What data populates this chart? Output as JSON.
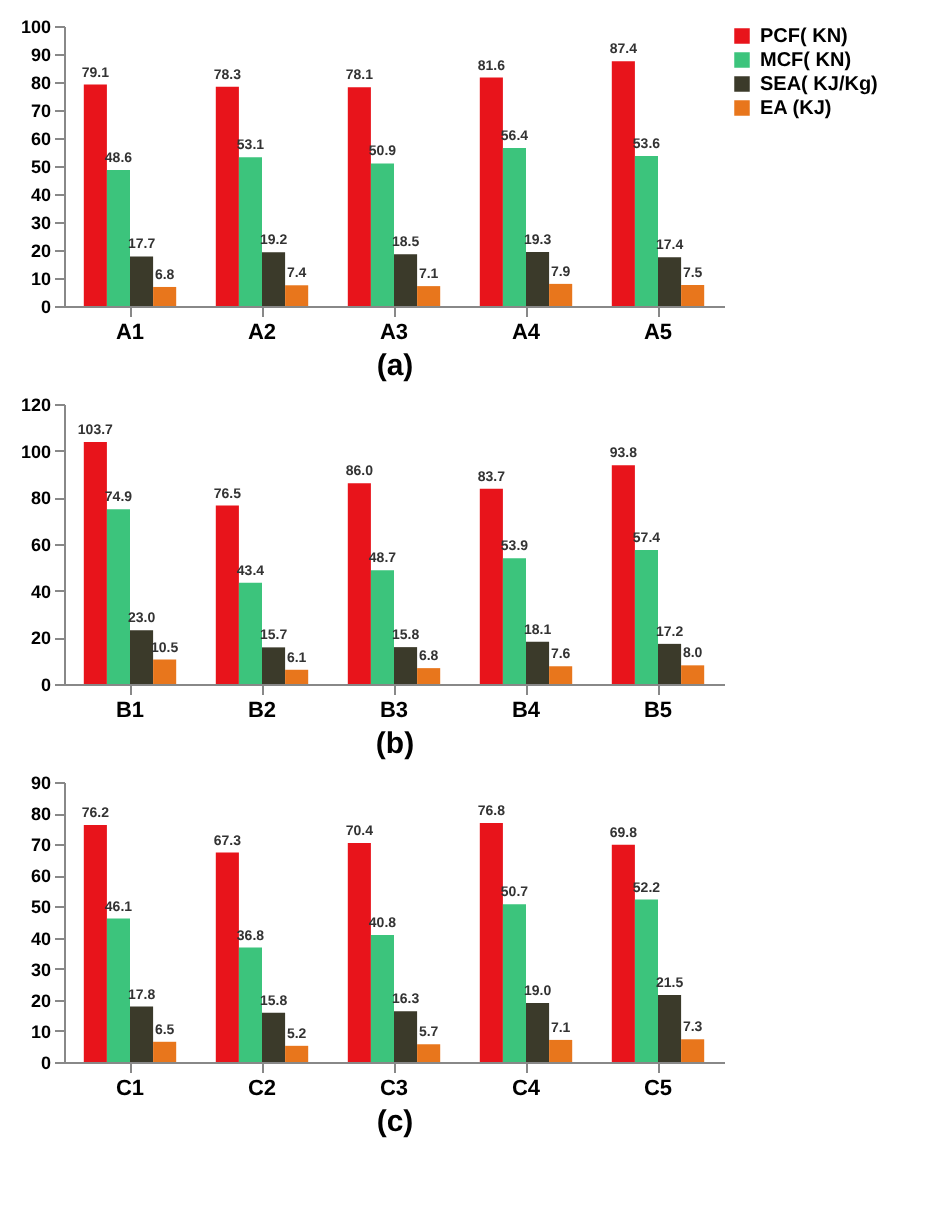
{
  "chart_data": [
    {
      "type": "bar",
      "xlabel": "(a)",
      "categories": [
        "A1",
        "A2",
        "A3",
        "A4",
        "A5"
      ],
      "ylim": [
        0,
        100
      ],
      "yticks": [
        0,
        10,
        20,
        30,
        40,
        50,
        60,
        70,
        80,
        90,
        100
      ],
      "grid": false,
      "legend": "top right",
      "series": [
        {
          "name": "PCF( KN)",
          "color": "#e8141b",
          "values": [
            79.1,
            78.3,
            78.1,
            81.6,
            87.4
          ],
          "value_labels": [
            "79.1",
            "78.3",
            "78.1",
            "81.6",
            "87.4"
          ]
        },
        {
          "name": "MCF( KN)",
          "color": "#3cc47c",
          "values": [
            48.6,
            53.1,
            50.9,
            56.4,
            53.6
          ],
          "value_labels": [
            "48.6",
            "53.1",
            "50.9",
            "56.4",
            "53.6"
          ]
        },
        {
          "name": "SEA( KJ/Kg)",
          "color": "#3b3a2a",
          "values": [
            17.7,
            19.2,
            18.5,
            19.3,
            17.4
          ],
          "value_labels": [
            "17.7",
            "19.2",
            "18.5",
            "19.3",
            "17.4"
          ]
        },
        {
          "name": "EA (KJ)",
          "color": "#e8761c",
          "values": [
            6.8,
            7.4,
            7.1,
            7.9,
            7.5
          ],
          "value_labels": [
            "6.8",
            "7.4",
            "7.1",
            "7.9",
            "7.5"
          ]
        }
      ]
    },
    {
      "type": "bar",
      "xlabel": "(b)",
      "categories": [
        "B1",
        "B2",
        "B3",
        "B4",
        "B5"
      ],
      "ylim": [
        0,
        120
      ],
      "yticks": [
        0,
        20,
        40,
        60,
        80,
        100,
        120
      ],
      "grid": false,
      "legend": "top right",
      "series": [
        {
          "name": "PCF( KN)",
          "color": "#e8141b",
          "values": [
            103.7,
            76.5,
            86.0,
            83.7,
            93.8
          ],
          "value_labels": [
            "103.7",
            "76.5",
            "86.0",
            "83.7",
            "93.8"
          ]
        },
        {
          "name": "MCF( KN)",
          "color": "#3cc47c",
          "values": [
            74.9,
            43.4,
            48.7,
            53.9,
            57.4
          ],
          "value_labels": [
            "74.9",
            "43.4",
            "48.7",
            "53.9",
            "57.4"
          ]
        },
        {
          "name": "SEA( KJ/Kg)",
          "color": "#3b3a2a",
          "values": [
            23.0,
            15.7,
            15.8,
            18.1,
            17.2
          ],
          "value_labels": [
            "23.0",
            "15.7",
            "15.8",
            "18.1",
            "17.2"
          ]
        },
        {
          "name": "EA (KJ)",
          "color": "#e8761c",
          "values": [
            10.5,
            6.1,
            6.8,
            7.6,
            8.0
          ],
          "value_labels": [
            "10.5",
            "6.1",
            "6.8",
            "7.6",
            "8.0"
          ]
        }
      ]
    },
    {
      "type": "bar",
      "xlabel": "(c)",
      "categories": [
        "C1",
        "C2",
        "C3",
        "C4",
        "C5"
      ],
      "ylim": [
        0,
        90
      ],
      "yticks": [
        0,
        10,
        20,
        30,
        40,
        50,
        60,
        70,
        80,
        90
      ],
      "grid": false,
      "legend": "top right",
      "series": [
        {
          "name": "PCF( KN)",
          "color": "#e8141b",
          "values": [
            76.2,
            67.3,
            70.4,
            76.8,
            69.8
          ],
          "value_labels": [
            "76.2",
            "67.3",
            "70.4",
            "76.8",
            "69.8"
          ]
        },
        {
          "name": "MCF( KN)",
          "color": "#3cc47c",
          "values": [
            46.1,
            36.8,
            40.8,
            50.7,
            52.2
          ],
          "value_labels": [
            "46.1",
            "36.8",
            "40.8",
            "50.7",
            "52.2"
          ]
        },
        {
          "name": "SEA( KJ/Kg)",
          "color": "#3b3a2a",
          "values": [
            17.8,
            15.8,
            16.3,
            19.0,
            21.5
          ],
          "value_labels": [
            "17.8",
            "15.8",
            "16.3",
            "19.0",
            "21.5"
          ]
        },
        {
          "name": "EA (KJ)",
          "color": "#e8761c",
          "values": [
            6.5,
            5.2,
            5.7,
            7.1,
            7.3
          ],
          "value_labels": [
            "6.5",
            "5.2",
            "5.7",
            "7.1",
            "7.3"
          ]
        }
      ]
    }
  ]
}
